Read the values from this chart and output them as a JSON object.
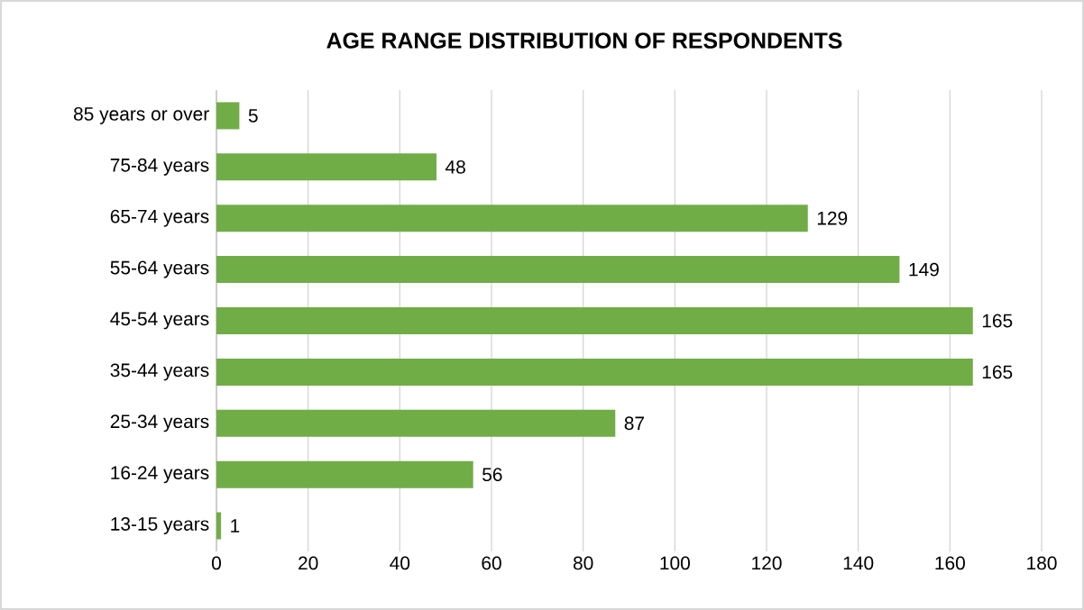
{
  "chart_data": {
    "type": "bar",
    "orientation": "horizontal",
    "title": "AGE RANGE DISTRIBUTION OF RESPONDENTS",
    "categories": [
      "85 years or over",
      "75-84 years",
      "65-74 years",
      "55-64 years",
      "45-54 years",
      "35-44 years",
      "25-34 years",
      "16-24 years",
      "13-15 years"
    ],
    "values": [
      5,
      48,
      129,
      149,
      165,
      165,
      87,
      56,
      1
    ],
    "color": "#70ad47",
    "xlim": [
      0,
      180
    ],
    "xticks": [
      0,
      20,
      40,
      60,
      80,
      100,
      120,
      140,
      160,
      180
    ],
    "grid": "x",
    "data_labels": true
  }
}
